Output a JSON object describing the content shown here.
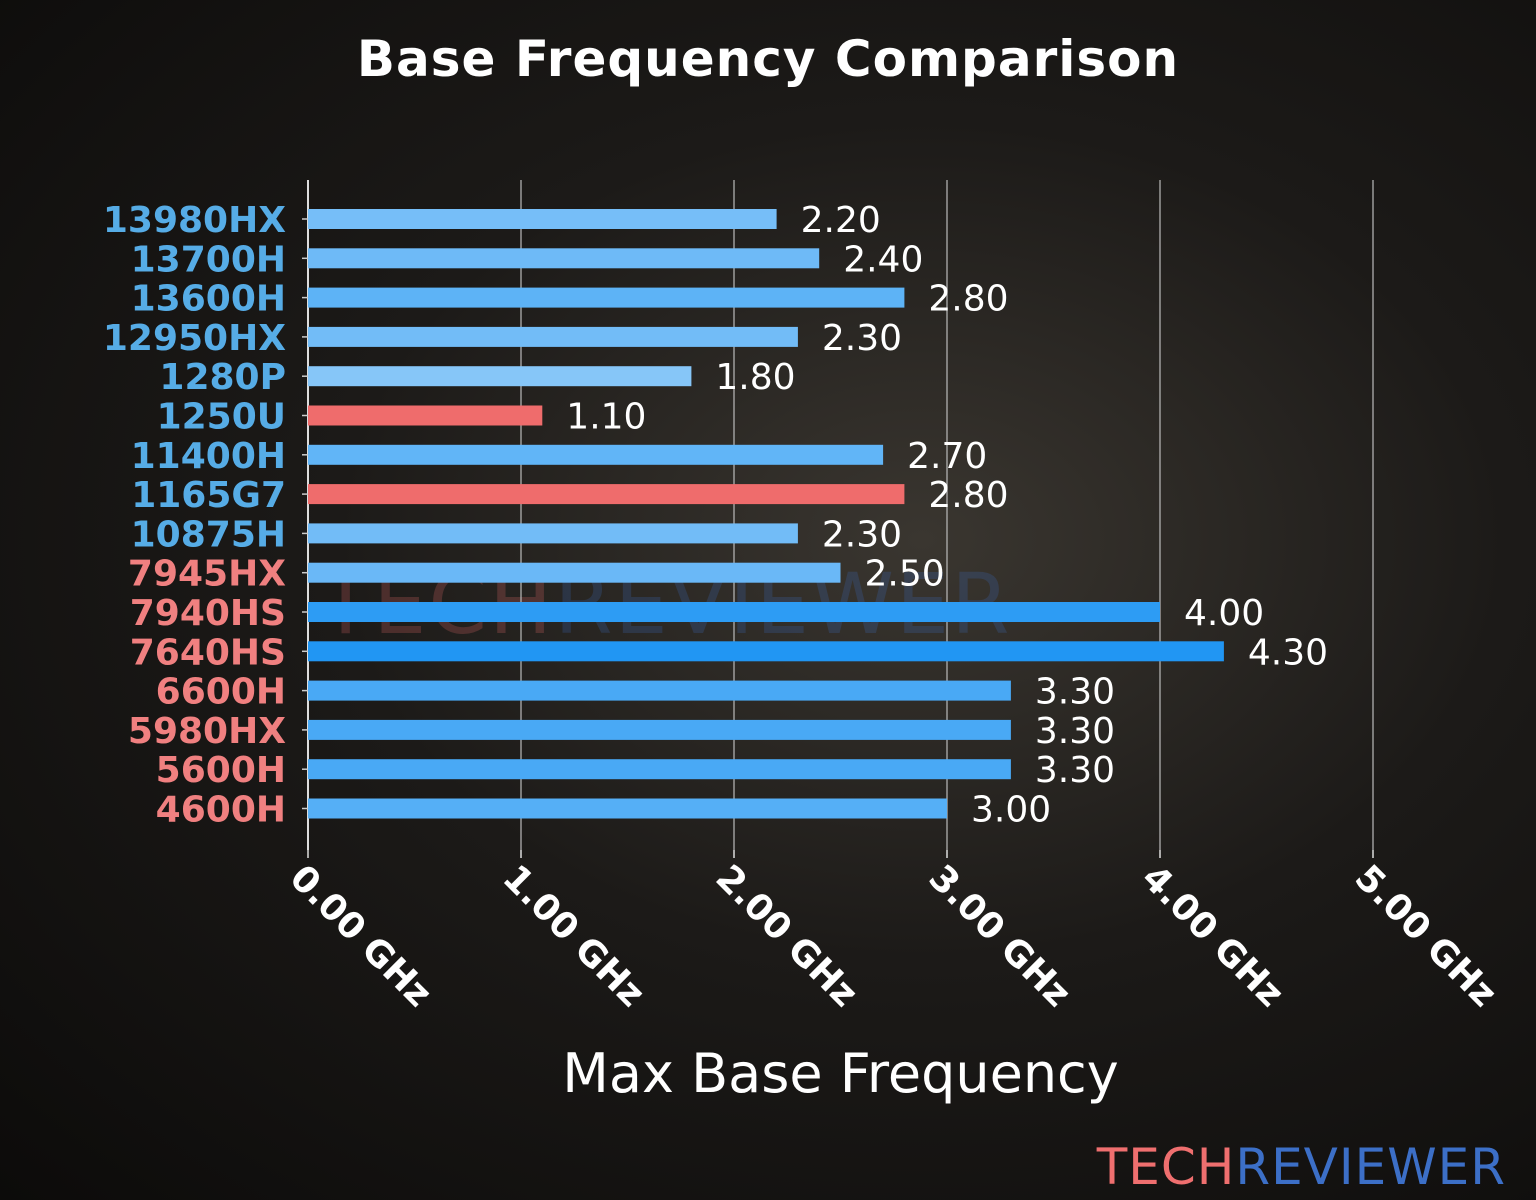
{
  "chart_data": {
    "type": "bar",
    "orientation": "horizontal",
    "title": "Base Frequency Comparison",
    "xlabel": "Max Base Frequency",
    "ylabel": "",
    "xlim": [
      0,
      5
    ],
    "x_ticks": [
      "0.00 GHz",
      "1.00 GHz",
      "2.00 GHz",
      "3.00 GHz",
      "4.00 GHz",
      "5.00 GHz"
    ],
    "grid": "vertical",
    "categories": [
      "13980HX",
      "13700H",
      "13600H",
      "12950HX",
      "1280P",
      "1250U",
      "11400H",
      "1165G7",
      "10875H",
      "7945HX",
      "7940HS",
      "7640HS",
      "6600H",
      "5980HX",
      "5600H",
      "4600H"
    ],
    "values": [
      2.2,
      2.4,
      2.8,
      2.3,
      1.8,
      1.1,
      2.7,
      2.8,
      2.3,
      2.5,
      4.0,
      4.3,
      3.3,
      3.3,
      3.3,
      3.0
    ],
    "data_labels": [
      "2.20",
      "2.40",
      "2.80",
      "2.30",
      "1.80",
      "1.10",
      "2.70",
      "2.80",
      "2.30",
      "2.50",
      "4.00",
      "4.30",
      "3.30",
      "3.30",
      "3.30",
      "3.00"
    ],
    "highlighted": [
      "1250U",
      "1165G7"
    ],
    "label_groups": [
      "intel",
      "intel",
      "intel",
      "intel",
      "intel",
      "intel",
      "intel",
      "intel",
      "intel",
      "amd",
      "amd",
      "amd",
      "amd",
      "amd",
      "amd",
      "amd"
    ],
    "colors": {
      "bar_low": "#a2d3fa",
      "bar_high": "#2196f3",
      "highlight": "#ef6c6c",
      "intel_label": "#56ace6",
      "amd_label": "#f08080",
      "grid": "#bbbbbb",
      "text": "#ffffff"
    }
  },
  "branding": {
    "logo_part1": "TECH",
    "logo_part2": "REVIEWER"
  }
}
